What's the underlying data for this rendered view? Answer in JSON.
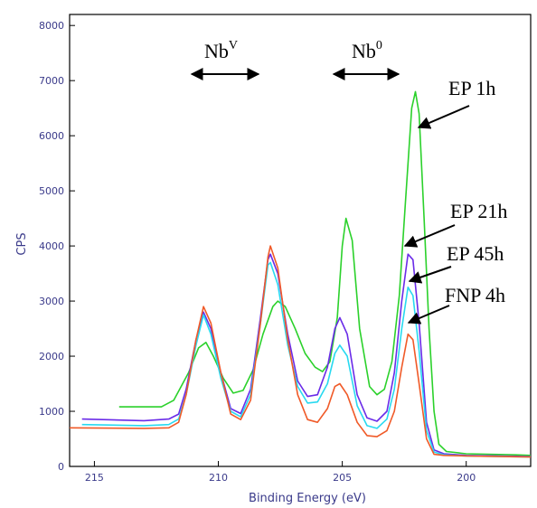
{
  "chart_data": {
    "type": "line",
    "title": "",
    "xlabel": "Binding Energy (eV)",
    "ylabel": "CPS",
    "xlim": [
      216,
      197.4
    ],
    "ylim": [
      0,
      8200
    ],
    "x_reversed": true,
    "grid": false,
    "xticks": [
      {
        "value": 215,
        "label": "215"
      },
      {
        "value": 210,
        "label": "210"
      },
      {
        "value": 205,
        "label": "205"
      },
      {
        "value": 200,
        "label": "200"
      }
    ],
    "yticks": [
      {
        "value": 0,
        "label": "0"
      },
      {
        "value": 1000,
        "label": "1000"
      },
      {
        "value": 2000,
        "label": "2000"
      },
      {
        "value": 3000,
        "label": "3000"
      },
      {
        "value": 4000,
        "label": "4000"
      },
      {
        "value": 5000,
        "label": "5000"
      },
      {
        "value": 6000,
        "label": "6000"
      },
      {
        "value": 7000,
        "label": "7000"
      },
      {
        "value": 8000,
        "label": "8000"
      }
    ],
    "series": [
      {
        "name": "EP 1h",
        "color": "#2bd12b",
        "points": [
          [
            214,
            1080
          ],
          [
            212.3,
            1080
          ],
          [
            211.8,
            1200
          ],
          [
            211.2,
            1700
          ],
          [
            210.8,
            2150
          ],
          [
            210.5,
            2250
          ],
          [
            210.2,
            2000
          ],
          [
            209.8,
            1600
          ],
          [
            209.4,
            1330
          ],
          [
            209,
            1380
          ],
          [
            208.6,
            1750
          ],
          [
            208.2,
            2400
          ],
          [
            207.8,
            2900
          ],
          [
            207.6,
            3000
          ],
          [
            207.3,
            2900
          ],
          [
            206.9,
            2500
          ],
          [
            206.5,
            2050
          ],
          [
            206.1,
            1800
          ],
          [
            205.8,
            1720
          ],
          [
            205.5,
            1900
          ],
          [
            205.2,
            2700
          ],
          [
            205,
            4000
          ],
          [
            204.85,
            4500
          ],
          [
            204.6,
            4100
          ],
          [
            204.3,
            2500
          ],
          [
            203.9,
            1450
          ],
          [
            203.6,
            1300
          ],
          [
            203.3,
            1400
          ],
          [
            203,
            1900
          ],
          [
            202.7,
            3100
          ],
          [
            202.45,
            4800
          ],
          [
            202.2,
            6500
          ],
          [
            202.05,
            6800
          ],
          [
            201.9,
            6400
          ],
          [
            201.7,
            4500
          ],
          [
            201.5,
            2500
          ],
          [
            201.3,
            1000
          ],
          [
            201.1,
            400
          ],
          [
            200.8,
            270
          ],
          [
            200,
            230
          ],
          [
            198,
            210
          ],
          [
            197.4,
            200
          ]
        ]
      },
      {
        "name": "EP 21h",
        "color": "#6a2be8",
        "points": [
          [
            215.5,
            860
          ],
          [
            213,
            830
          ],
          [
            212,
            860
          ],
          [
            211.6,
            950
          ],
          [
            211.3,
            1400
          ],
          [
            210.9,
            2300
          ],
          [
            210.6,
            2800
          ],
          [
            210.3,
            2500
          ],
          [
            209.9,
            1700
          ],
          [
            209.5,
            1050
          ],
          [
            209.1,
            960
          ],
          [
            208.7,
            1400
          ],
          [
            208.3,
            2700
          ],
          [
            208,
            3750
          ],
          [
            207.9,
            3850
          ],
          [
            207.6,
            3500
          ],
          [
            207.2,
            2400
          ],
          [
            206.8,
            1550
          ],
          [
            206.4,
            1270
          ],
          [
            206,
            1300
          ],
          [
            205.6,
            1800
          ],
          [
            205.3,
            2500
          ],
          [
            205.1,
            2700
          ],
          [
            204.8,
            2400
          ],
          [
            204.4,
            1300
          ],
          [
            204,
            880
          ],
          [
            203.6,
            820
          ],
          [
            203.2,
            1000
          ],
          [
            202.9,
            1700
          ],
          [
            202.6,
            3000
          ],
          [
            202.35,
            3850
          ],
          [
            202.15,
            3750
          ],
          [
            201.9,
            2600
          ],
          [
            201.6,
            800
          ],
          [
            201.3,
            300
          ],
          [
            200.9,
            230
          ],
          [
            200,
            200
          ],
          [
            197.4,
            180
          ]
        ]
      },
      {
        "name": "EP 45h",
        "color": "#28d9f0",
        "points": [
          [
            215.5,
            760
          ],
          [
            213,
            740
          ],
          [
            212,
            760
          ],
          [
            211.6,
            860
          ],
          [
            211.3,
            1300
          ],
          [
            210.9,
            2200
          ],
          [
            210.6,
            2750
          ],
          [
            210.3,
            2400
          ],
          [
            209.9,
            1600
          ],
          [
            209.5,
            1000
          ],
          [
            209.1,
            900
          ],
          [
            208.7,
            1300
          ],
          [
            208.3,
            2600
          ],
          [
            208,
            3650
          ],
          [
            207.9,
            3700
          ],
          [
            207.6,
            3300
          ],
          [
            207.2,
            2200
          ],
          [
            206.8,
            1450
          ],
          [
            206.4,
            1150
          ],
          [
            206,
            1170
          ],
          [
            205.6,
            1500
          ],
          [
            205.3,
            2050
          ],
          [
            205.1,
            2200
          ],
          [
            204.8,
            2000
          ],
          [
            204.4,
            1100
          ],
          [
            204,
            740
          ],
          [
            203.6,
            690
          ],
          [
            203.2,
            860
          ],
          [
            202.9,
            1400
          ],
          [
            202.6,
            2500
          ],
          [
            202.35,
            3250
          ],
          [
            202.15,
            3100
          ],
          [
            201.9,
            2100
          ],
          [
            201.6,
            650
          ],
          [
            201.3,
            260
          ],
          [
            200.9,
            210
          ],
          [
            200,
            190
          ],
          [
            197.4,
            170
          ]
        ]
      },
      {
        "name": "FNP 4h",
        "color": "#f05a28",
        "points": [
          [
            216,
            700
          ],
          [
            213,
            690
          ],
          [
            212,
            700
          ],
          [
            211.6,
            800
          ],
          [
            211.3,
            1300
          ],
          [
            210.9,
            2300
          ],
          [
            210.6,
            2900
          ],
          [
            210.3,
            2600
          ],
          [
            209.9,
            1700
          ],
          [
            209.5,
            950
          ],
          [
            209.1,
            850
          ],
          [
            208.7,
            1200
          ],
          [
            208.3,
            2600
          ],
          [
            208,
            3800
          ],
          [
            207.9,
            4000
          ],
          [
            207.6,
            3600
          ],
          [
            207.2,
            2300
          ],
          [
            206.8,
            1300
          ],
          [
            206.4,
            850
          ],
          [
            206,
            800
          ],
          [
            205.6,
            1050
          ],
          [
            205.3,
            1450
          ],
          [
            205.1,
            1500
          ],
          [
            204.8,
            1300
          ],
          [
            204.4,
            800
          ],
          [
            204,
            560
          ],
          [
            203.6,
            540
          ],
          [
            203.2,
            650
          ],
          [
            202.9,
            1000
          ],
          [
            202.6,
            1800
          ],
          [
            202.35,
            2400
          ],
          [
            202.15,
            2300
          ],
          [
            201.9,
            1500
          ],
          [
            201.6,
            500
          ],
          [
            201.3,
            220
          ],
          [
            200.9,
            200
          ],
          [
            200,
            190
          ],
          [
            197.4,
            170
          ]
        ]
      }
    ],
    "annotations": [
      {
        "id": "nbv",
        "text": "Nb",
        "sup": "V"
      },
      {
        "id": "nb0",
        "text": "Nb",
        "sup": "0"
      },
      {
        "id": "ep1",
        "text": "EP 1h"
      },
      {
        "id": "ep21",
        "text": "EP 21h"
      },
      {
        "id": "ep45",
        "text": "EP 45h"
      },
      {
        "id": "fnp4",
        "text": "FNP 4h"
      }
    ]
  }
}
